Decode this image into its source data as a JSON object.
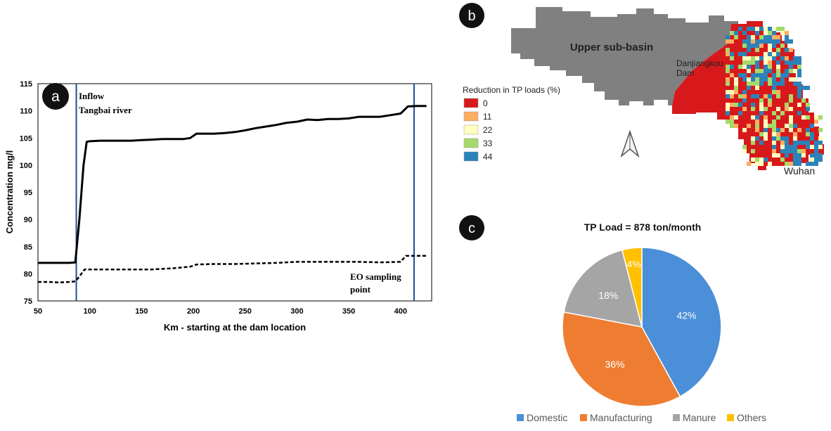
{
  "panels": {
    "a": {
      "badge": "a"
    },
    "b": {
      "badge": "b"
    },
    "c": {
      "badge": "c"
    }
  },
  "chart_data": [
    {
      "type": "line",
      "xlabel": "Km - starting at the dam location",
      "ylabel": "Concentration mg/l",
      "xlim": [
        50,
        430
      ],
      "ylim": [
        75,
        115
      ],
      "xticks": [
        50,
        100,
        150,
        200,
        250,
        300,
        350,
        400
      ],
      "yticks": [
        75,
        80,
        85,
        90,
        95,
        100,
        105,
        110,
        115
      ],
      "grid": "none",
      "series": [
        {
          "style": "solid",
          "x": [
            50,
            60,
            70,
            80,
            86,
            90,
            94,
            97,
            100,
            110,
            120,
            130,
            140,
            150,
            160,
            170,
            180,
            190,
            197,
            203,
            210,
            220,
            230,
            240,
            250,
            260,
            270,
            280,
            290,
            300,
            310,
            320,
            330,
            340,
            350,
            360,
            370,
            380,
            390,
            400,
            407,
            415,
            425
          ],
          "y": [
            82,
            82,
            82,
            82,
            82.1,
            90,
            100,
            104.3,
            104.4,
            104.5,
            104.5,
            104.5,
            104.5,
            104.6,
            104.7,
            104.8,
            104.8,
            104.8,
            105,
            105.8,
            105.8,
            105.8,
            105.9,
            106.1,
            106.4,
            106.8,
            107.1,
            107.4,
            107.8,
            108,
            108.4,
            108.3,
            108.5,
            108.5,
            108.6,
            108.9,
            108.9,
            108.9,
            109.2,
            109.5,
            110.8,
            110.9,
            110.9
          ]
        },
        {
          "style": "dashed",
          "x": [
            50,
            60,
            70,
            80,
            86,
            90,
            95,
            100,
            120,
            140,
            160,
            180,
            197,
            203,
            220,
            240,
            260,
            280,
            300,
            320,
            340,
            360,
            380,
            400,
            405,
            410,
            420,
            425
          ],
          "y": [
            78.5,
            78.5,
            78.4,
            78.5,
            78.6,
            79.5,
            80.8,
            80.8,
            80.8,
            80.8,
            80.8,
            81,
            81.3,
            81.7,
            81.8,
            81.8,
            81.9,
            82,
            82.2,
            82.2,
            82.2,
            82.2,
            82.1,
            82.2,
            83.3,
            83.3,
            83.3,
            83.3
          ]
        }
      ],
      "vlines": [
        {
          "x": 87,
          "label_lines": [
            "Inflow",
            "Tangbai river"
          ]
        },
        {
          "x": 413,
          "label_lines": [
            "EO sampling",
            "point"
          ]
        }
      ]
    },
    {
      "type": "map",
      "labels": {
        "upper": "Upper sub-basin",
        "dam_line1": "Danjiangkou",
        "dam_line2": "Dam",
        "city": "Wuhan"
      },
      "legend": {
        "title": "Reduction in TP loads (%)",
        "items": [
          {
            "label": "0",
            "color": "#d7191c"
          },
          {
            "label": "11",
            "color": "#fdae61"
          },
          {
            "label": "22",
            "color": "#ffffbf"
          },
          {
            "label": "33",
            "color": "#a6d96a"
          },
          {
            "label": "44",
            "color": "#2b83ba"
          }
        ]
      },
      "upper_color": "#808080"
    },
    {
      "type": "pie",
      "title": "TP Load = 878 ton/month",
      "slices": [
        {
          "label": "Domestic",
          "value": 42,
          "text": "42%",
          "color": "#4a8fd8"
        },
        {
          "label": "Manufacturing",
          "value": 36,
          "text": "36%",
          "color": "#ee7d31"
        },
        {
          "label": "Manure",
          "value": 18,
          "text": "18%",
          "color": "#a5a5a5"
        },
        {
          "label": "Others",
          "value": 4,
          "text": "4%",
          "color": "#ffc000"
        }
      ],
      "legend_position": "bottom"
    }
  ]
}
